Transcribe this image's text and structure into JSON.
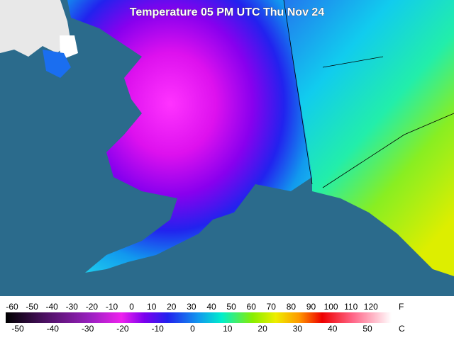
{
  "title": "Temperature 05 PM UTC Thu Nov 24",
  "legend": {
    "fahrenheit": {
      "unit": "F",
      "ticks": [
        -60,
        -50,
        -40,
        -30,
        -20,
        -10,
        0,
        10,
        20,
        30,
        40,
        50,
        60,
        70,
        80,
        90,
        100,
        110,
        120
      ]
    },
    "celsius": {
      "unit": "C",
      "ticks": [
        -50,
        -40,
        -30,
        -20,
        -10,
        0,
        10,
        20,
        30,
        40,
        50
      ]
    }
  }
}
